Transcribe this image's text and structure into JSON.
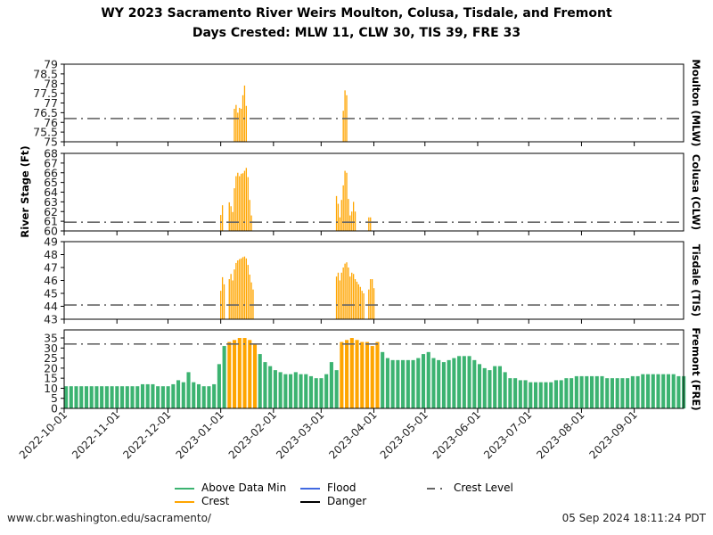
{
  "title_line1": "WY 2023 Sacramento River Weirs Moulton, Colusa, Tisdale, and Fremont",
  "title_line2": "Days Crested: MLW 11, CLW 30, TIS 39, FRE 33",
  "footer_left": "www.cbr.washington.edu/sacramento/",
  "footer_right": "05 Sep 2024 18:11:24 PDT",
  "legend": [
    {
      "label": "Above Data Min",
      "color": "#3cb371",
      "style": "solid"
    },
    {
      "label": "Crest",
      "color": "#ffa500",
      "style": "solid"
    },
    {
      "label": "Flood",
      "color": "#4169e1",
      "style": "solid"
    },
    {
      "label": "Danger",
      "color": "#000000",
      "style": "solid"
    },
    {
      "label": "Crest Level",
      "color": "#666666",
      "style": "dashdot"
    }
  ],
  "chart_data": {
    "type": "bar",
    "ylabel": "River Stage (Ft)",
    "xlim": [
      "2022-10-01",
      "2023-09-30"
    ],
    "xticks": [
      "2022-10-01",
      "2022-11-01",
      "2022-12-01",
      "2023-01-01",
      "2023-02-01",
      "2023-03-01",
      "2023-04-01",
      "2023-05-01",
      "2023-06-01",
      "2023-07-01",
      "2023-08-01",
      "2023-09-01"
    ],
    "colors": {
      "above_data_min": "#3cb371",
      "crest": "#ffa500",
      "crest_level": "#666666"
    },
    "grid": false,
    "legend_placement": "bottom",
    "panels": [
      {
        "name": "Moulton (MLW)",
        "ylim": [
          75,
          79
        ],
        "yticks": [
          "75",
          "75.5",
          "76",
          "76.5",
          "77",
          "77.5",
          "78",
          "78.5",
          "79"
        ],
        "crest_level": 76.2,
        "days_crested": 11,
        "points": [
          [
            "2023-01-09",
            76.7
          ],
          [
            "2023-01-10",
            76.9
          ],
          [
            "2023-01-11",
            76.5
          ],
          [
            "2023-01-12",
            76.75
          ],
          [
            "2023-01-13",
            76.7
          ],
          [
            "2023-01-14",
            77.4
          ],
          [
            "2023-01-15",
            77.9
          ],
          [
            "2023-01-16",
            76.85
          ],
          [
            "2023-03-14",
            76.6
          ],
          [
            "2023-03-15",
            77.65
          ],
          [
            "2023-03-16",
            77.4
          ]
        ]
      },
      {
        "name": "Colusa (CLW)",
        "ylim": [
          60,
          68
        ],
        "yticks": [
          "60",
          "61",
          "62",
          "63",
          "64",
          "65",
          "66",
          "67",
          "68"
        ],
        "crest_level": 60.9,
        "days_crested": 30,
        "points": [
          [
            "2023-01-01",
            61.65
          ],
          [
            "2023-01-02",
            62.65
          ],
          [
            "2023-01-06",
            62.95
          ],
          [
            "2023-01-07",
            62.55
          ],
          [
            "2023-01-08",
            61.95
          ],
          [
            "2023-01-09",
            64.4
          ],
          [
            "2023-01-10",
            65.65
          ],
          [
            "2023-01-11",
            66.0
          ],
          [
            "2023-01-12",
            65.65
          ],
          [
            "2023-01-13",
            65.9
          ],
          [
            "2023-01-14",
            65.95
          ],
          [
            "2023-01-15",
            66.2
          ],
          [
            "2023-01-16",
            66.5
          ],
          [
            "2023-01-17",
            65.55
          ],
          [
            "2023-01-18",
            63.2
          ],
          [
            "2023-01-19",
            61.6
          ],
          [
            "2023-03-10",
            63.6
          ],
          [
            "2023-03-11",
            62.8
          ],
          [
            "2023-03-12",
            61.4
          ],
          [
            "2023-03-13",
            63.2
          ],
          [
            "2023-03-14",
            64.7
          ],
          [
            "2023-03-15",
            66.2
          ],
          [
            "2023-03-16",
            66.0
          ],
          [
            "2023-03-17",
            63.3
          ],
          [
            "2023-03-18",
            61.6
          ],
          [
            "2023-03-19",
            62.0
          ],
          [
            "2023-03-20",
            63.0
          ],
          [
            "2023-03-21",
            62.0
          ],
          [
            "2023-03-29",
            61.4
          ],
          [
            "2023-03-30",
            61.4
          ]
        ]
      },
      {
        "name": "Tisdale (TIS)",
        "ylim": [
          43,
          49
        ],
        "yticks": [
          "43",
          "44",
          "45",
          "46",
          "47",
          "48",
          "49"
        ],
        "crest_level": 44.1,
        "days_crested": 39,
        "points": [
          [
            "2023-01-01",
            45.2
          ],
          [
            "2023-01-02",
            46.25
          ],
          [
            "2023-01-03",
            45.7
          ],
          [
            "2023-01-06",
            46.1
          ],
          [
            "2023-01-07",
            46.5
          ],
          [
            "2023-01-08",
            46.0
          ],
          [
            "2023-01-09",
            46.85
          ],
          [
            "2023-01-10",
            47.35
          ],
          [
            "2023-01-11",
            47.55
          ],
          [
            "2023-01-12",
            47.65
          ],
          [
            "2023-01-13",
            47.7
          ],
          [
            "2023-01-14",
            47.8
          ],
          [
            "2023-01-15",
            47.85
          ],
          [
            "2023-01-16",
            47.7
          ],
          [
            "2023-01-17",
            47.2
          ],
          [
            "2023-01-18",
            46.45
          ],
          [
            "2023-01-19",
            45.85
          ],
          [
            "2023-01-20",
            45.3
          ],
          [
            "2023-03-10",
            46.3
          ],
          [
            "2023-03-11",
            46.6
          ],
          [
            "2023-03-12",
            46.0
          ],
          [
            "2023-03-13",
            46.6
          ],
          [
            "2023-03-14",
            47.0
          ],
          [
            "2023-03-15",
            47.3
          ],
          [
            "2023-03-16",
            47.4
          ],
          [
            "2023-03-17",
            47.0
          ],
          [
            "2023-03-18",
            46.3
          ],
          [
            "2023-03-19",
            46.6
          ],
          [
            "2023-03-20",
            46.5
          ],
          [
            "2023-03-21",
            46.1
          ],
          [
            "2023-03-22",
            45.9
          ],
          [
            "2023-03-23",
            45.7
          ],
          [
            "2023-03-24",
            45.5
          ],
          [
            "2023-03-25",
            45.2
          ],
          [
            "2023-03-26",
            45.0
          ],
          [
            "2023-03-29",
            45.3
          ],
          [
            "2023-03-30",
            46.1
          ],
          [
            "2023-03-31",
            46.1
          ],
          [
            "2023-04-01",
            45.4
          ]
        ]
      },
      {
        "name": "Fremont (FRE)",
        "ylim": [
          0,
          39
        ],
        "yticks": [
          "0",
          "5",
          "10",
          "15",
          "20",
          "25",
          "30",
          "35"
        ],
        "crest_level": 32.0,
        "days_crested": 33,
        "crest_periods": [
          [
            "2023-01-05",
            "2023-01-21"
          ],
          [
            "2023-03-12",
            "2023-04-02"
          ]
        ],
        "dates": [
          "2022-10-01",
          "2022-10-04",
          "2022-10-07",
          "2022-10-10",
          "2022-10-13",
          "2022-10-16",
          "2022-10-19",
          "2022-10-22",
          "2022-10-25",
          "2022-10-28",
          "2022-10-31",
          "2022-11-03",
          "2022-11-06",
          "2022-11-09",
          "2022-11-12",
          "2022-11-15",
          "2022-11-18",
          "2022-11-21",
          "2022-11-24",
          "2022-11-27",
          "2022-11-30",
          "2022-12-03",
          "2022-12-06",
          "2022-12-09",
          "2022-12-12",
          "2022-12-15",
          "2022-12-18",
          "2022-12-21",
          "2022-12-24",
          "2022-12-27",
          "2022-12-30",
          "2023-01-02",
          "2023-01-05",
          "2023-01-08",
          "2023-01-11",
          "2023-01-14",
          "2023-01-17",
          "2023-01-20",
          "2023-01-23",
          "2023-01-26",
          "2023-01-29",
          "2023-02-01",
          "2023-02-04",
          "2023-02-07",
          "2023-02-10",
          "2023-02-13",
          "2023-02-16",
          "2023-02-19",
          "2023-02-22",
          "2023-02-25",
          "2023-02-28",
          "2023-03-03",
          "2023-03-06",
          "2023-03-09",
          "2023-03-12",
          "2023-03-15",
          "2023-03-18",
          "2023-03-21",
          "2023-03-24",
          "2023-03-27",
          "2023-03-30",
          "2023-04-02",
          "2023-04-05",
          "2023-04-08",
          "2023-04-11",
          "2023-04-14",
          "2023-04-17",
          "2023-04-20",
          "2023-04-23",
          "2023-04-26",
          "2023-04-29",
          "2023-05-02",
          "2023-05-05",
          "2023-05-08",
          "2023-05-11",
          "2023-05-14",
          "2023-05-17",
          "2023-05-20",
          "2023-05-23",
          "2023-05-26",
          "2023-05-29",
          "2023-06-01",
          "2023-06-04",
          "2023-06-07",
          "2023-06-10",
          "2023-06-13",
          "2023-06-16",
          "2023-06-19",
          "2023-06-22",
          "2023-06-25",
          "2023-06-28",
          "2023-07-01",
          "2023-07-04",
          "2023-07-07",
          "2023-07-10",
          "2023-07-13",
          "2023-07-16",
          "2023-07-19",
          "2023-07-22",
          "2023-07-25",
          "2023-07-28",
          "2023-07-31",
          "2023-08-03",
          "2023-08-06",
          "2023-08-09",
          "2023-08-12",
          "2023-08-15",
          "2023-08-18",
          "2023-08-21",
          "2023-08-24",
          "2023-08-27",
          "2023-08-30",
          "2023-09-02",
          "2023-09-05",
          "2023-09-08",
          "2023-09-11",
          "2023-09-14",
          "2023-09-17",
          "2023-09-20",
          "2023-09-23",
          "2023-09-26",
          "2023-09-29"
        ],
        "values": [
          11,
          11,
          11,
          11,
          11,
          11,
          11,
          11,
          11,
          11,
          11,
          11,
          11,
          11,
          11,
          12,
          12,
          12,
          11,
          11,
          11,
          12,
          14,
          13,
          18,
          13,
          12,
          11,
          11,
          12,
          22,
          31,
          33,
          34,
          35,
          35,
          34,
          32,
          27,
          23,
          21,
          19,
          18,
          17,
          17,
          18,
          17,
          17,
          16,
          15,
          15,
          17,
          23,
          19,
          33,
          34,
          35,
          34,
          33,
          33,
          31,
          33,
          28,
          25,
          24,
          24,
          24,
          24,
          24,
          25,
          27,
          28,
          25,
          24,
          23,
          24,
          25,
          26,
          26,
          26,
          24,
          22,
          20,
          19,
          21,
          21,
          18,
          15,
          15,
          14,
          14,
          13,
          13,
          13,
          13,
          13,
          14,
          14,
          15,
          15,
          16,
          16,
          16,
          16,
          16,
          16,
          15,
          15,
          15,
          15,
          15,
          16,
          16,
          17,
          17,
          17,
          17,
          17,
          17,
          17,
          16,
          16
        ]
      }
    ]
  }
}
